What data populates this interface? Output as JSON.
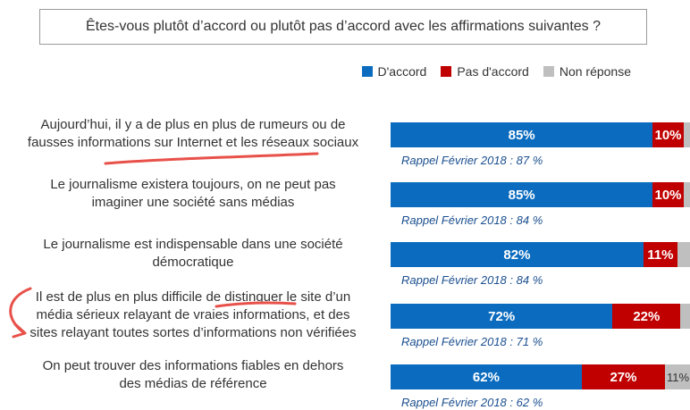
{
  "question": "Êtes-vous plutôt d’accord ou plutôt pas d’accord avec les affirmations suivantes ?",
  "legend": [
    {
      "label": "D'accord",
      "color": "#0b6cbf"
    },
    {
      "label": "Pas d'accord",
      "color": "#c00000"
    },
    {
      "label": "Non réponse",
      "color": "#bfbfbf"
    }
  ],
  "chart_data": {
    "type": "bar",
    "orientation": "horizontal",
    "stacked": true,
    "categories": [
      [
        "Aujourd’hui, il y a de plus en plus de rumeurs ou de",
        "fausses informations sur Internet et les réseaux sociaux"
      ],
      [
        "Le journalisme existera toujours, on ne peut pas",
        "imaginer une société sans médias"
      ],
      [
        "Le journalisme est indispensable dans une société",
        "démocratique"
      ],
      [
        "Il est de plus en plus difficile de distinguer le site d’un",
        "média sérieux relayant de vraies informations, et des",
        "sites relayant toutes sortes d’informations non vérifiées"
      ],
      [
        "On peut trouver des informations fiables en dehors",
        "des médias de référence"
      ]
    ],
    "series": [
      {
        "name": "D'accord",
        "values": [
          85,
          85,
          82,
          72,
          62
        ],
        "labels": [
          "85%",
          "85%",
          "82%",
          "72%",
          "62%"
        ]
      },
      {
        "name": "Pas d'accord",
        "values": [
          10,
          10,
          11,
          22,
          27
        ],
        "labels": [
          "10%",
          "10%",
          "11%",
          "22%",
          "27%"
        ]
      },
      {
        "name": "Non réponse",
        "values": [
          5,
          5,
          7,
          6,
          11
        ],
        "labels": [
          "5%",
          "5%",
          "7%",
          "6%",
          "11%"
        ]
      }
    ],
    "recall": [
      "Rappel Février 2018 : 87 %",
      "Rappel Février 2018 : 84 %",
      "Rappel Février 2018 : 84 %",
      "Rappel Février 2018 : 71 %",
      "Rappel Février 2018 : 62 %"
    ],
    "xlim": [
      0,
      100
    ]
  }
}
